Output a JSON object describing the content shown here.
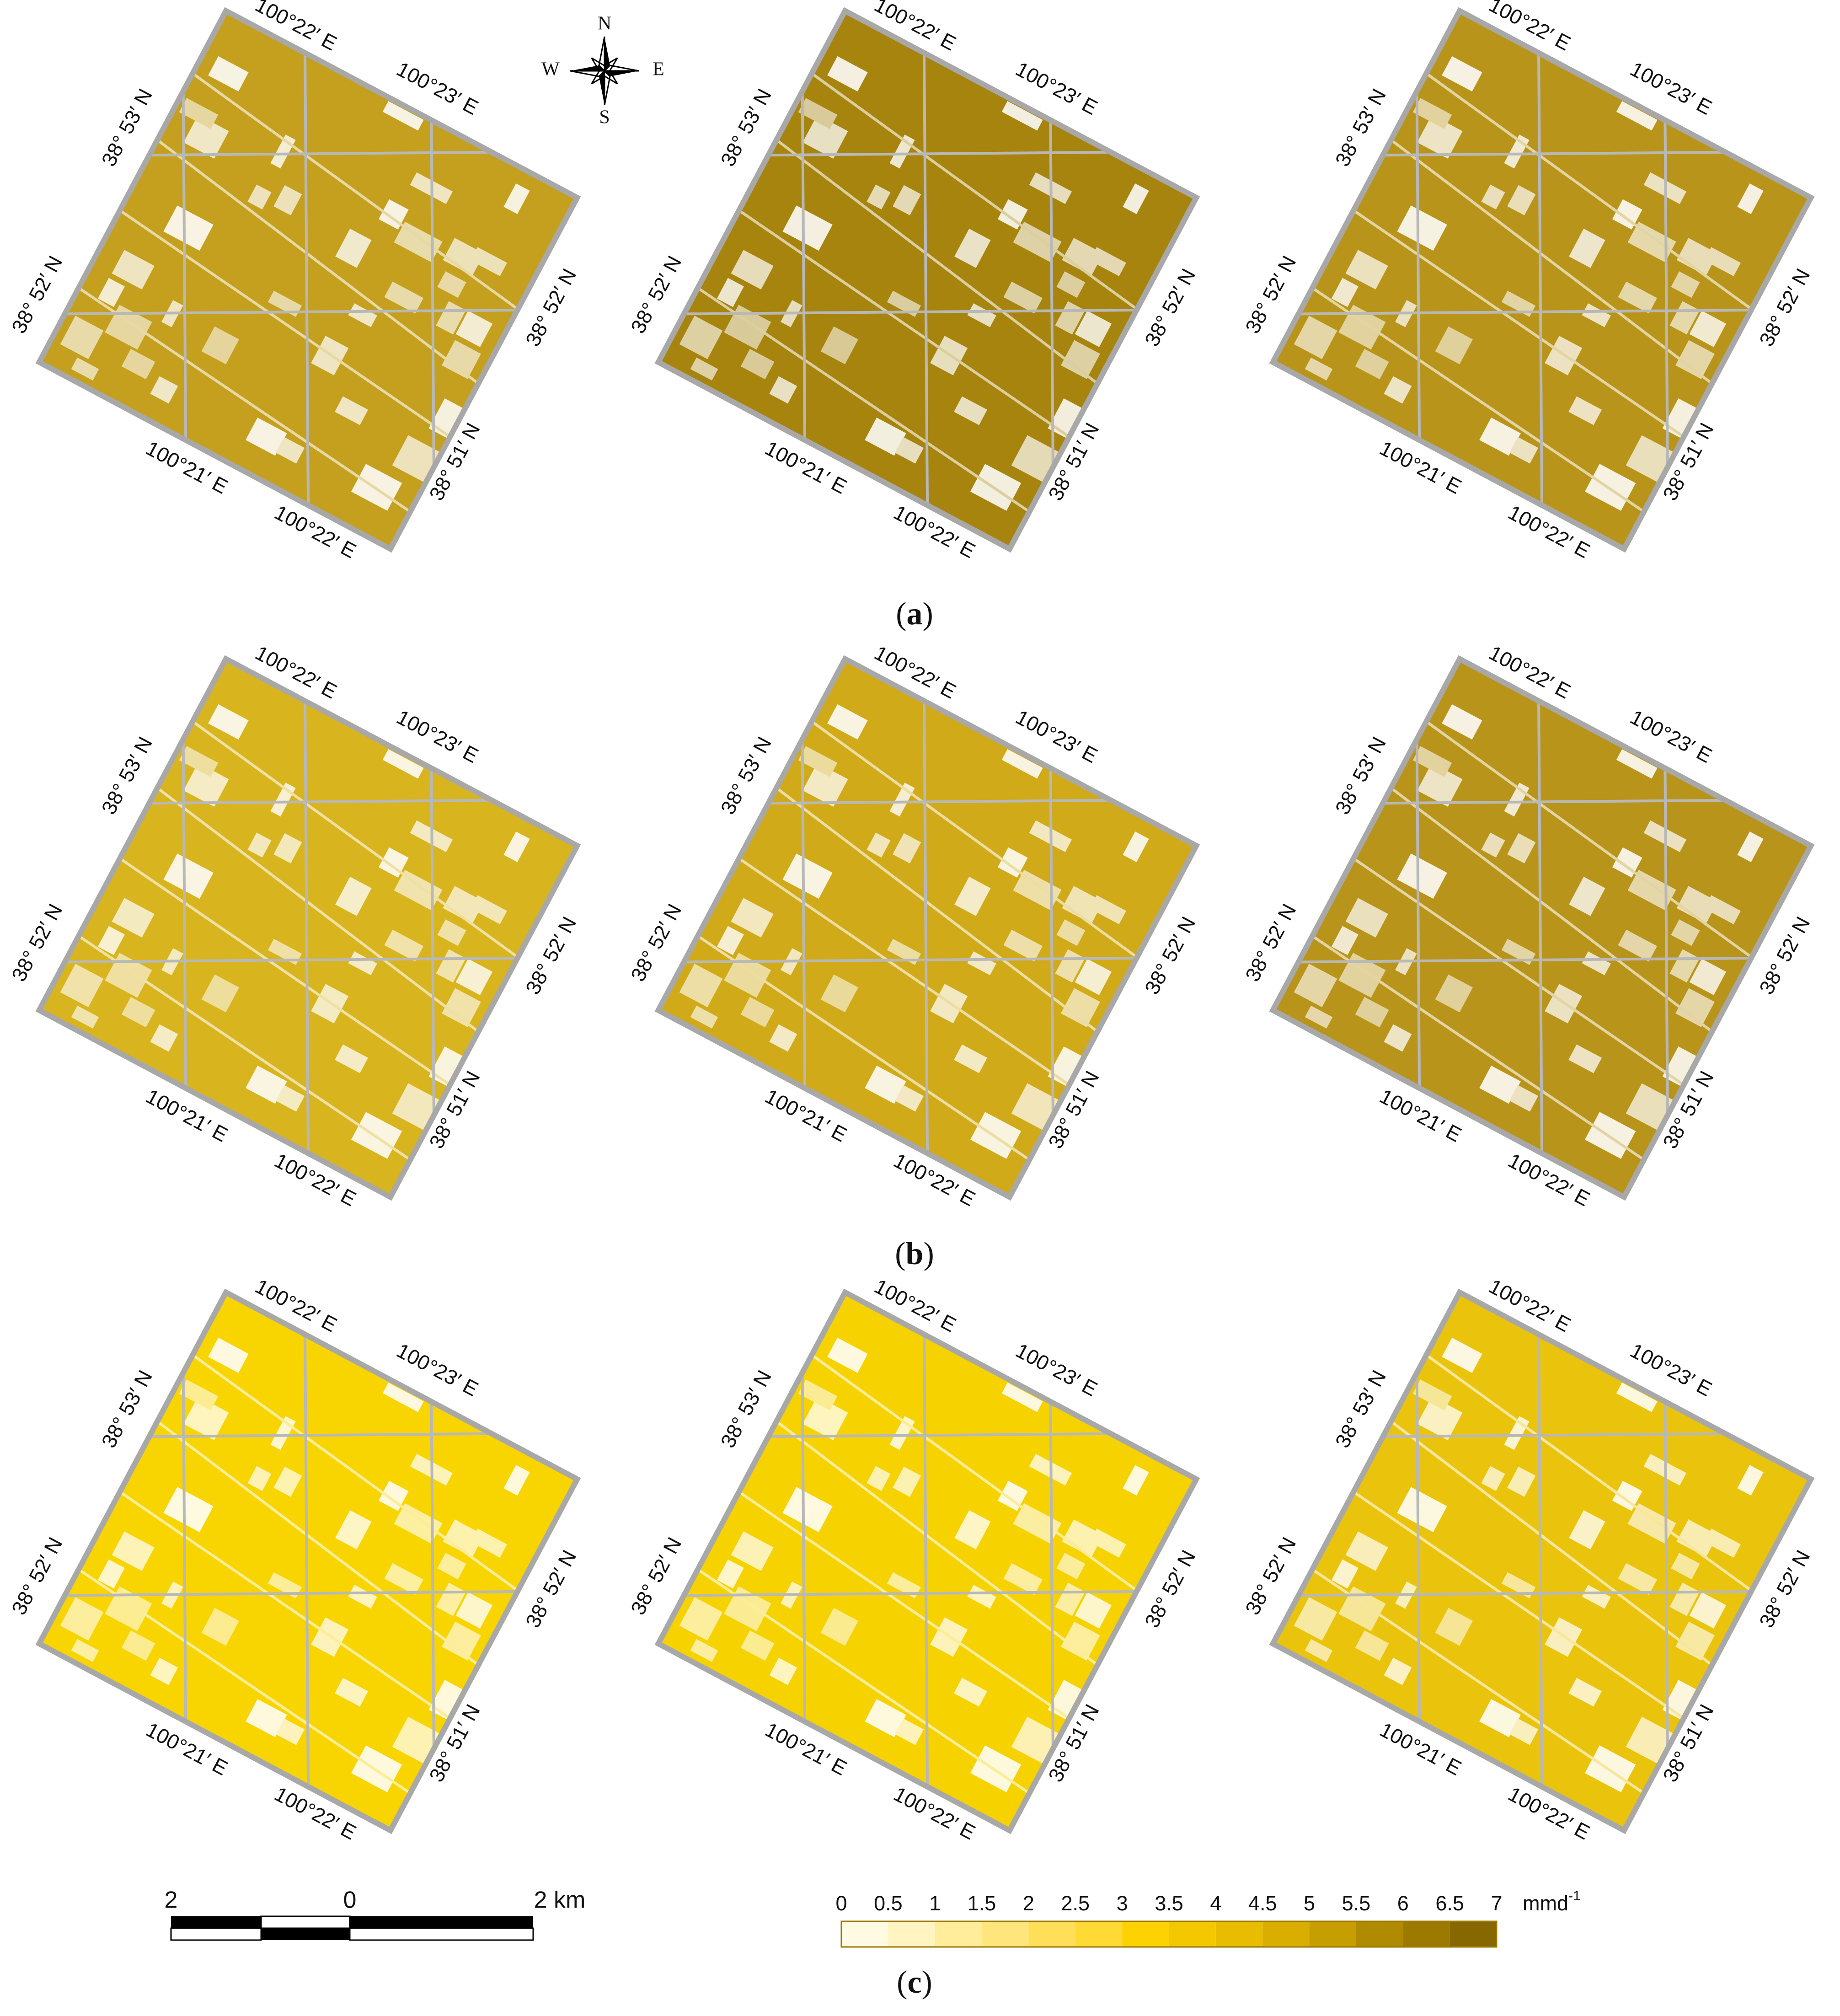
{
  "compass": {
    "north": "N",
    "south": "S",
    "east": "E",
    "west": "W"
  },
  "map_labels": [
    "100°22′ E",
    "100°23′ E",
    "38° 53′ N",
    "38° 52′ N",
    "38° 52′ N",
    "100°21′ E",
    "100°22′ E",
    "38° 51′ N"
  ],
  "rows": [
    {
      "caption": [
        "(",
        "a",
        ")"
      ],
      "maps": [
        {
          "color": "#c4a01e"
        },
        {
          "color": "#a6840e"
        },
        {
          "color": "#b8951a"
        }
      ]
    },
    {
      "caption": [
        "(",
        "b",
        ")"
      ],
      "maps": [
        {
          "color": "#d8b41e"
        },
        {
          "color": "#d0aa18"
        },
        {
          "color": "#b8941a"
        }
      ]
    },
    {
      "caption": [
        "(",
        "c",
        ")"
      ],
      "maps": [
        {
          "color": "#f8d400"
        },
        {
          "color": "#f6d200"
        },
        {
          "color": "#eac40c"
        }
      ]
    }
  ],
  "scale_bar": {
    "labels": [
      "2",
      "0",
      "2 km"
    ]
  },
  "legend": {
    "ticks": [
      0,
      0.5,
      1,
      1.5,
      2,
      2.5,
      3,
      3.5,
      4,
      4.5,
      5,
      5.5,
      6,
      6.5,
      7
    ],
    "colors": [
      "#fffae2",
      "#fff4c2",
      "#ffed9c",
      "#ffe67c",
      "#ffdf58",
      "#ffd934",
      "#fcd202",
      "#f3c800",
      "#e8bc00",
      "#d9ae00",
      "#c79e00",
      "#b08a00",
      "#9c7a00",
      "#876800"
    ],
    "unit": "mmd",
    "unit_exponent": "-1"
  }
}
